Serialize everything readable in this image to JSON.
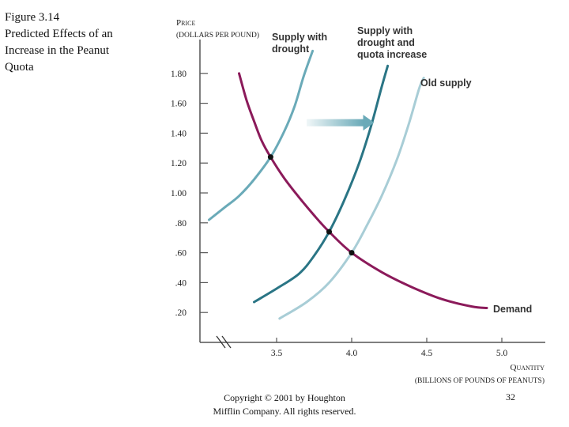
{
  "figure": {
    "title_lines": [
      "Figure 3.14",
      "Predicted Effects of an",
      "Increase in the Peanut",
      "Quota"
    ]
  },
  "footer": {
    "copyright_lines": [
      "Copyright © 2001 by Houghton",
      "Mifflin Company. All rights reserved."
    ],
    "page_number": "32"
  },
  "chart_data": {
    "type": "line",
    "title": "Predicted Effects of an Increase in the Peanut Quota",
    "ylabel_lines": [
      "Price",
      "(dollars per pound)"
    ],
    "xlabel_lines": [
      "Quantity",
      "(billions of pounds of peanuts)"
    ],
    "xlim": [
      3.0,
      5.3
    ],
    "ylim": [
      0.0,
      2.0
    ],
    "x_ticks": [
      3.5,
      4.0,
      4.5,
      5.0
    ],
    "x_tick_labels": [
      "3.5",
      "4.0",
      "4.5",
      "5.0"
    ],
    "y_ticks": [
      0.2,
      0.4,
      0.6,
      0.8,
      1.0,
      1.2,
      1.4,
      1.6,
      1.8
    ],
    "y_tick_labels": [
      ".20",
      ".40",
      ".60",
      ".80",
      "1.00",
      "1.20",
      "1.40",
      "1.60",
      "1.80"
    ],
    "axis_break": true,
    "grid": false,
    "series": [
      {
        "name": "Demand",
        "label_lines": [
          "Demand"
        ],
        "color": "#8b1a5a",
        "points": [
          [
            3.25,
            1.8
          ],
          [
            3.3,
            1.62
          ],
          [
            3.35,
            1.48
          ],
          [
            3.4,
            1.35
          ],
          [
            3.46,
            1.24
          ],
          [
            3.55,
            1.1
          ],
          [
            3.65,
            0.97
          ],
          [
            3.75,
            0.85
          ],
          [
            3.85,
            0.74
          ],
          [
            4.0,
            0.6
          ],
          [
            4.2,
            0.47
          ],
          [
            4.4,
            0.37
          ],
          [
            4.6,
            0.29
          ],
          [
            4.8,
            0.24
          ],
          [
            4.9,
            0.23
          ]
        ]
      },
      {
        "name": "Supply with drought",
        "label_lines": [
          "Supply with",
          "drought"
        ],
        "color": "#6aaab8",
        "points": [
          [
            3.05,
            0.82
          ],
          [
            3.15,
            0.9
          ],
          [
            3.25,
            0.98
          ],
          [
            3.35,
            1.09
          ],
          [
            3.46,
            1.24
          ],
          [
            3.55,
            1.41
          ],
          [
            3.62,
            1.58
          ],
          [
            3.68,
            1.78
          ],
          [
            3.74,
            1.95
          ]
        ]
      },
      {
        "name": "Supply with drought and quota increase",
        "label_lines": [
          "Supply with",
          "drought and",
          "quota increase"
        ],
        "color": "#2a7585",
        "points": [
          [
            3.35,
            0.27
          ],
          [
            3.5,
            0.36
          ],
          [
            3.65,
            0.46
          ],
          [
            3.75,
            0.58
          ],
          [
            3.85,
            0.74
          ],
          [
            3.95,
            0.95
          ],
          [
            4.05,
            1.2
          ],
          [
            4.13,
            1.45
          ],
          [
            4.2,
            1.71
          ],
          [
            4.24,
            1.85
          ]
        ]
      },
      {
        "name": "Old supply",
        "label_lines": [
          "Old supply"
        ],
        "color": "#a8cdd6",
        "points": [
          [
            3.52,
            0.16
          ],
          [
            3.7,
            0.27
          ],
          [
            3.85,
            0.4
          ],
          [
            4.0,
            0.6
          ],
          [
            4.1,
            0.78
          ],
          [
            4.2,
            0.98
          ],
          [
            4.3,
            1.22
          ],
          [
            4.38,
            1.46
          ],
          [
            4.45,
            1.7
          ],
          [
            4.48,
            1.77
          ]
        ]
      }
    ],
    "equilibrium_points": [
      [
        3.46,
        1.24
      ],
      [
        3.85,
        0.74
      ],
      [
        4.0,
        0.6
      ]
    ],
    "annotations": [
      {
        "type": "arrow",
        "from": [
          3.7,
          1.47
        ],
        "to": [
          4.15,
          1.47
        ],
        "color": "#6aaab8"
      }
    ]
  }
}
